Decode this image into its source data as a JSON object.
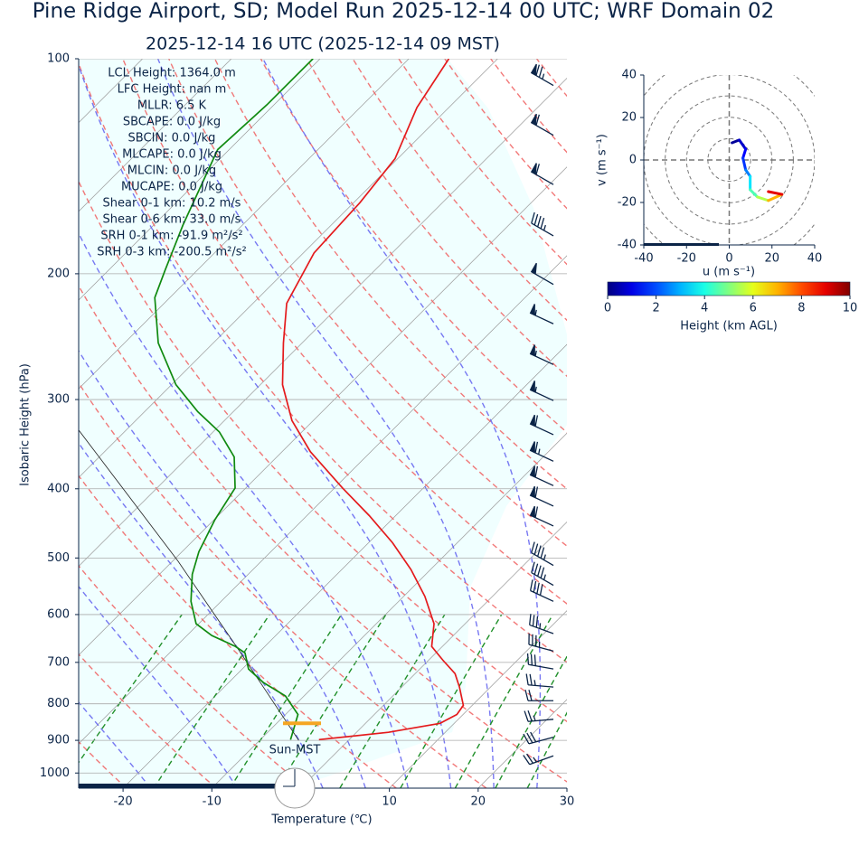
{
  "chart_data": [
    {
      "type": "skewt",
      "title": "Pine Ridge Airport, SD; Model Run 2025-12-14 00 UTC; WRF Domain 02",
      "subtitle": "2025-12-14 16 UTC  (2025-12-14 09 MST)",
      "xlabel": "Temperature (℃)",
      "ylabel": "Isobaric Height (hPa)",
      "xlim": [
        -25,
        30
      ],
      "xticks": [
        -20,
        -10,
        10,
        20,
        30
      ],
      "ylim": [
        1050,
        100
      ],
      "yticks": [
        100,
        200,
        300,
        400,
        500,
        600,
        700,
        800,
        900,
        1000
      ],
      "log_scale": true,
      "stats": [
        "LCL Height: 1364.0 m",
        "LFC Height: nan m",
        "MLLR: 6.5 K",
        "SBCAPE: 0.0 J/kg",
        "SBCIN: 0.0 J/kg",
        "MLCAPE: 0.0 J/kg",
        "MLCIN: 0.0 J/kg",
        "MUCAPE: 0.0 J/kg",
        "Shear 0-1 km: 10.2 m/s",
        "Shear 0-6 km: 33.0 m/s",
        "SRH 0-1 km: -91.9 m²/s²",
        "SRH 0-3 km: -200.5 m²/s²"
      ],
      "sun_label": "Sun-MST",
      "lcl_pressure": 852,
      "lcl_color": "#f5a623",
      "temperature": {
        "color": "#e41a1c",
        "pressure": [
          898,
          877,
          852,
          828,
          804,
          758,
          726,
          695,
          665,
          618,
          566,
          519,
          476,
          436,
          399,
          355,
          321,
          286,
          250,
          220,
          187,
          159,
          138,
          117,
          100
        ],
        "values": [
          -3.4,
          3.6,
          8.4,
          9.3,
          9.0,
          6.5,
          4.5,
          1.6,
          -1.2,
          -3.5,
          -7.6,
          -12.2,
          -17.3,
          -23.0,
          -29.1,
          -36.8,
          -42.4,
          -47.5,
          -52.1,
          -56.2,
          -58.8,
          -59.3,
          -60.3,
          -63.6,
          -65.5
        ]
      },
      "dewpoint": {
        "color": "#108a10",
        "pressure": [
          898,
          828,
          780,
          747,
          715,
          679,
          665,
          642,
          618,
          575,
          527,
          490,
          442,
          399,
          361,
          333,
          312,
          286,
          250,
          216,
          198,
          171,
          134,
          116,
          100
        ],
        "values": [
          -6.6,
          -8.6,
          -12.1,
          -16.1,
          -19.3,
          -21.5,
          -23.3,
          -27.2,
          -30.3,
          -33.4,
          -36.3,
          -38.1,
          -39.9,
          -41.2,
          -44.8,
          -49.3,
          -54.0,
          -59.5,
          -66.2,
          -71.7,
          -73.6,
          -76.7,
          -81.3,
          -80.8,
          -80.8
        ]
      },
      "parcel": {
        "color": "#222222",
        "pressure": [
          900,
          673,
          505,
          327
        ],
        "values": [
          -5.6,
          -22.5,
          -39.4,
          -66.1
        ]
      },
      "wind_barbs": {
        "color": "#0b2447",
        "pressure": [
          109,
          128,
          150,
          177,
          207,
          235,
          268,
          301,
          336,
          366,
          396,
          423,
          451,
          512,
          546,
          575,
          638,
          675,
          715,
          758,
          792,
          841,
          891,
          946
        ],
        "speed": [
          75,
          60,
          60,
          45,
          50,
          55,
          55,
          55,
          60,
          65,
          60,
          60,
          60,
          45,
          45,
          40,
          35,
          35,
          30,
          25,
          20,
          25,
          30,
          25
        ],
        "direction": [
          300,
          300,
          300,
          300,
          300,
          295,
          295,
          295,
          295,
          295,
          295,
          295,
          295,
          300,
          300,
          295,
          290,
          285,
          280,
          275,
          270,
          265,
          255,
          250
        ]
      }
    },
    {
      "type": "hodograph",
      "xlabel": "u (m s⁻¹)",
      "ylabel": "v (m s⁻¹)",
      "xlim": [
        -40,
        40
      ],
      "ylim": [
        -40,
        40
      ],
      "xticks": [
        -40,
        -20,
        0,
        20,
        40
      ],
      "yticks": [
        -40,
        -20,
        0,
        20,
        40
      ],
      "u": [
        1.3,
        4.7,
        7.7,
        6.4,
        7.7,
        9.8,
        9.8,
        13.2,
        18.3,
        24.7,
        18.3
      ],
      "v": [
        8.1,
        9.4,
        5.1,
        0.9,
        -4.7,
        -7.7,
        -14.0,
        -17.4,
        -19.1,
        -16.2,
        -14.9
      ],
      "heights": [
        0,
        0.5,
        1,
        1.5,
        2,
        3,
        4,
        5,
        6,
        8,
        10
      ],
      "colorbar": {
        "label": "Height (km AGL)",
        "lim": [
          0,
          10
        ],
        "ticks": [
          0,
          2,
          4,
          6,
          8,
          10
        ]
      }
    }
  ]
}
